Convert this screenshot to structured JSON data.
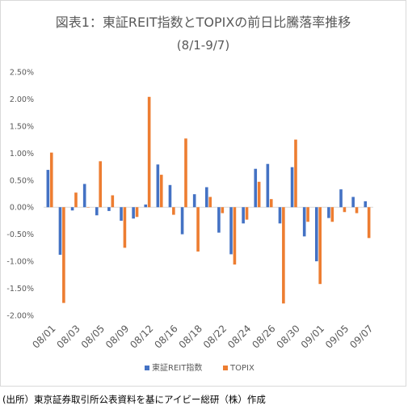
{
  "chart_data": {
    "type": "bar",
    "title": "図表1：東証REIT指数とTOPIXの前日比騰落率推移",
    "subtitle": "(8/1-9/7)",
    "xlabel": "",
    "ylabel": "",
    "ylim": [
      -2.0,
      2.5
    ],
    "yticks": [
      "2.50%",
      "2.00%",
      "1.50%",
      "1.00%",
      "0.50%",
      "0.00%",
      "-0.50%",
      "-1.00%",
      "-1.50%",
      "-2.00%"
    ],
    "x_tick_labels": [
      "08/01",
      "08/03",
      "08/05",
      "08/09",
      "08/12",
      "08/16",
      "08/18",
      "08/22",
      "08/24",
      "08/26",
      "08/30",
      "09/01",
      "09/05",
      "09/07"
    ],
    "grid": false,
    "legend_position": "bottom",
    "series": [
      {
        "name": "東証REIT指数",
        "color": "#4472c4",
        "values": [
          0.69,
          -0.88,
          -0.06,
          0.43,
          -0.15,
          -0.07,
          -0.25,
          -0.21,
          0.05,
          0.79,
          0.41,
          -0.5,
          0.24,
          0.37,
          -0.47,
          -0.87,
          -0.3,
          0.71,
          0.8,
          -0.3,
          0.74,
          -0.54,
          -1.0,
          -0.2,
          0.33,
          0.19,
          0.11
        ]
      },
      {
        "name": "TOPIX",
        "color": "#ed7d31",
        "values": [
          1.01,
          -1.77,
          0.27,
          0.0,
          0.85,
          0.22,
          -0.75,
          -0.18,
          2.04,
          0.6,
          -0.14,
          1.27,
          -0.82,
          0.19,
          -0.11,
          -1.06,
          -0.23,
          0.47,
          0.15,
          -1.78,
          1.25,
          -0.27,
          -1.42,
          -0.27,
          -0.09,
          -0.11,
          -0.57
        ]
      }
    ]
  },
  "source_note": "(出所）東京証券取引所公表資料を基にアイビー総研（株）作成"
}
